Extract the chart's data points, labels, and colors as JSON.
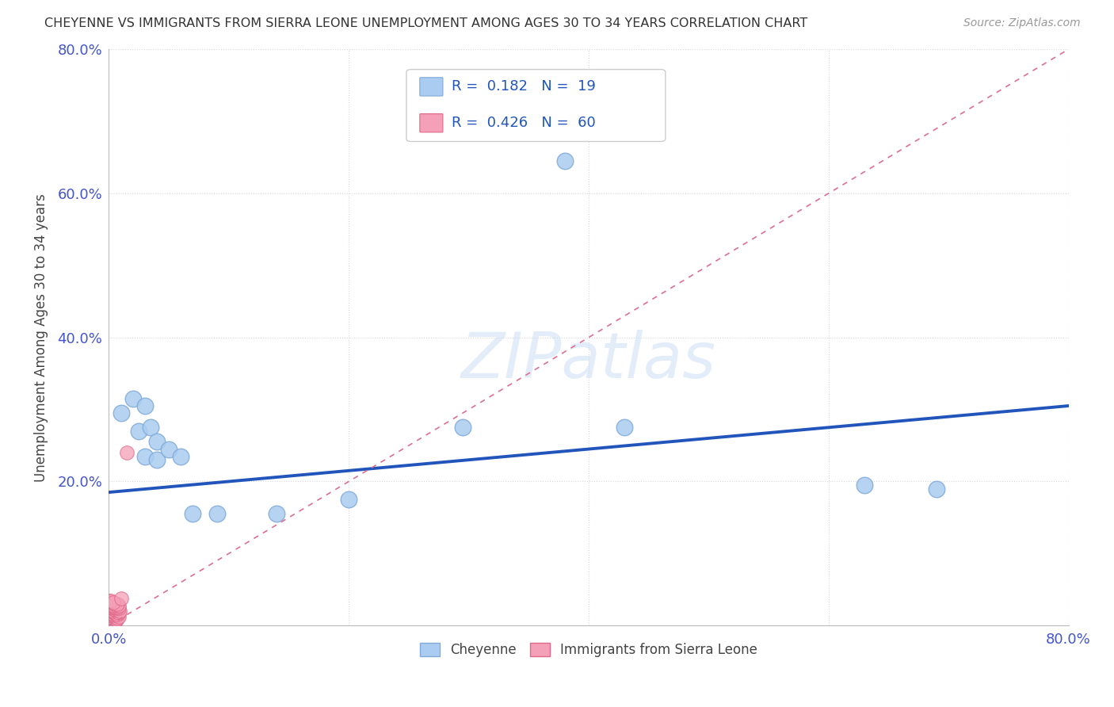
{
  "title": "CHEYENNE VS IMMIGRANTS FROM SIERRA LEONE UNEMPLOYMENT AMONG AGES 30 TO 34 YEARS CORRELATION CHART",
  "source": "Source: ZipAtlas.com",
  "ylabel": "Unemployment Among Ages 30 to 34 years",
  "xlim": [
    0.0,
    0.8
  ],
  "ylim": [
    0.0,
    0.8
  ],
  "xticks": [
    0.0,
    0.2,
    0.4,
    0.6,
    0.8
  ],
  "yticks": [
    0.0,
    0.2,
    0.4,
    0.6,
    0.8
  ],
  "cheyenne_color": "#aaccf0",
  "cheyenne_edge_color": "#80aad8",
  "sierra_leone_color": "#f4a0b8",
  "sierra_leone_edge_color": "#e06888",
  "trend_blue_color": "#2255bb",
  "trend_pink_color": "#dd7090",
  "legend_R1": "0.182",
  "legend_N1": "19",
  "legend_R2": "0.426",
  "legend_N2": "60",
  "watermark": "ZIPatlas",
  "cheyenne_points": [
    [
      0.01,
      0.295
    ],
    [
      0.02,
      0.315
    ],
    [
      0.025,
      0.27
    ],
    [
      0.03,
      0.305
    ],
    [
      0.035,
      0.275
    ],
    [
      0.04,
      0.255
    ],
    [
      0.03,
      0.235
    ],
    [
      0.04,
      0.23
    ],
    [
      0.05,
      0.245
    ],
    [
      0.06,
      0.235
    ],
    [
      0.07,
      0.155
    ],
    [
      0.09,
      0.155
    ],
    [
      0.14,
      0.155
    ],
    [
      0.2,
      0.175
    ],
    [
      0.295,
      0.275
    ],
    [
      0.38,
      0.645
    ],
    [
      0.43,
      0.275
    ],
    [
      0.63,
      0.195
    ],
    [
      0.69,
      0.19
    ]
  ],
  "sierra_leone_points": [
    [
      0.0,
      0.0
    ],
    [
      0.001,
      0.002
    ],
    [
      0.002,
      0.001
    ],
    [
      0.003,
      0.003
    ],
    [
      0.0,
      0.005
    ],
    [
      0.002,
      0.006
    ],
    [
      0.004,
      0.004
    ],
    [
      0.001,
      0.008
    ],
    [
      0.003,
      0.007
    ],
    [
      0.005,
      0.005
    ],
    [
      0.0,
      0.01
    ],
    [
      0.002,
      0.012
    ],
    [
      0.004,
      0.01
    ],
    [
      0.006,
      0.008
    ],
    [
      0.001,
      0.015
    ],
    [
      0.003,
      0.014
    ],
    [
      0.005,
      0.012
    ],
    [
      0.007,
      0.01
    ],
    [
      0.0,
      0.018
    ],
    [
      0.002,
      0.017
    ],
    [
      0.004,
      0.016
    ],
    [
      0.006,
      0.014
    ],
    [
      0.008,
      0.012
    ],
    [
      0.001,
      0.02
    ],
    [
      0.003,
      0.019
    ],
    [
      0.005,
      0.018
    ],
    [
      0.007,
      0.016
    ],
    [
      0.0,
      0.022
    ],
    [
      0.002,
      0.022
    ],
    [
      0.004,
      0.02
    ],
    [
      0.006,
      0.02
    ],
    [
      0.008,
      0.018
    ],
    [
      0.001,
      0.024
    ],
    [
      0.003,
      0.024
    ],
    [
      0.005,
      0.022
    ],
    [
      0.007,
      0.022
    ],
    [
      0.009,
      0.02
    ],
    [
      0.0,
      0.026
    ],
    [
      0.002,
      0.026
    ],
    [
      0.004,
      0.025
    ],
    [
      0.006,
      0.024
    ],
    [
      0.008,
      0.024
    ],
    [
      0.001,
      0.028
    ],
    [
      0.003,
      0.028
    ],
    [
      0.005,
      0.026
    ],
    [
      0.007,
      0.026
    ],
    [
      0.0,
      0.03
    ],
    [
      0.002,
      0.03
    ],
    [
      0.004,
      0.028
    ],
    [
      0.006,
      0.028
    ],
    [
      0.008,
      0.028
    ],
    [
      0.001,
      0.032
    ],
    [
      0.003,
      0.032
    ],
    [
      0.005,
      0.03
    ],
    [
      0.007,
      0.03
    ],
    [
      0.0,
      0.034
    ],
    [
      0.002,
      0.034
    ],
    [
      0.004,
      0.032
    ],
    [
      0.01,
      0.038
    ],
    [
      0.015,
      0.24
    ]
  ],
  "background_color": "#ffffff",
  "grid_color": "#d8d8d8",
  "trend_blue_x0": 0.0,
  "trend_blue_y0": 0.185,
  "trend_blue_x1": 0.8,
  "trend_blue_y1": 0.305,
  "trend_pink_x0": 0.0,
  "trend_pink_y0": 0.0,
  "trend_pink_x1": 0.8,
  "trend_pink_y1": 0.8
}
